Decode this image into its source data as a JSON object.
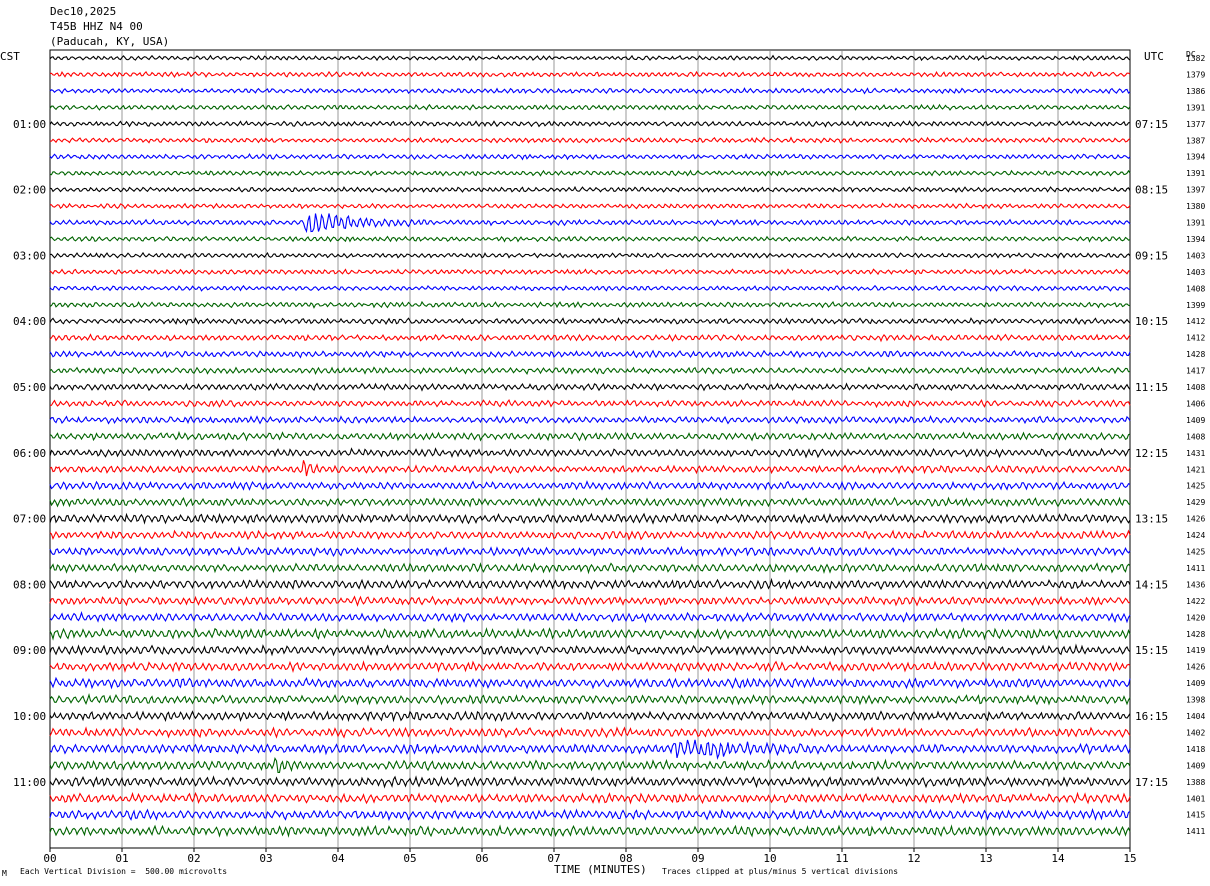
{
  "header": {
    "date": "Dec10,2025",
    "station": "T45B HHZ N4 00",
    "location": "(Paducah, KY, USA)"
  },
  "left_tz": "CST",
  "right_tz": "UTC",
  "dc_label": "DC",
  "footer": {
    "scale": "Each Vertical Division =  500.00 microvolts",
    "xlabel": "TIME (MINUTES)",
    "clip_note": "Traces clipped at plus/minus 5 vertical divisions",
    "corner_mark": "M"
  },
  "colors": {
    "trace_cycle": [
      "#000000",
      "#ff0000",
      "#0000ff",
      "#006400"
    ],
    "grid": "#808080",
    "background": "#ffffff"
  },
  "chart_data": {
    "type": "line",
    "title": "",
    "xlabel": "TIME (MINUTES)",
    "xlim": [
      0,
      15
    ],
    "x_ticks": [
      "00",
      "01",
      "02",
      "03",
      "04",
      "05",
      "06",
      "07",
      "08",
      "09",
      "10",
      "11",
      "12",
      "13",
      "14",
      "15"
    ],
    "trace_count": 48,
    "left_hour_labels": [
      {
        "row": 4,
        "label": "01:00"
      },
      {
        "row": 8,
        "label": "02:00"
      },
      {
        "row": 12,
        "label": "03:00"
      },
      {
        "row": 16,
        "label": "04:00"
      },
      {
        "row": 20,
        "label": "05:00"
      },
      {
        "row": 24,
        "label": "06:00"
      },
      {
        "row": 28,
        "label": "07:00"
      },
      {
        "row": 32,
        "label": "08:00"
      },
      {
        "row": 36,
        "label": "09:00"
      },
      {
        "row": 40,
        "label": "10:00"
      },
      {
        "row": 44,
        "label": "11:00"
      }
    ],
    "right_hour_labels": [
      {
        "row": 4,
        "label": "07:15"
      },
      {
        "row": 8,
        "label": "08:15"
      },
      {
        "row": 12,
        "label": "09:15"
      },
      {
        "row": 16,
        "label": "10:15"
      },
      {
        "row": 20,
        "label": "11:15"
      },
      {
        "row": 24,
        "label": "12:15"
      },
      {
        "row": 28,
        "label": "13:15"
      },
      {
        "row": 32,
        "label": "14:15"
      },
      {
        "row": 36,
        "label": "15:15"
      },
      {
        "row": 40,
        "label": "16:15"
      },
      {
        "row": 44,
        "label": "17:15"
      }
    ],
    "dc_offsets": [
      "1382",
      "1379",
      "1386",
      "1391",
      "1377",
      "1387",
      "1394",
      "1391",
      "1397",
      "1380",
      "1391",
      "1394",
      "1403",
      "1403",
      "1408",
      "1399",
      "1412",
      "1412",
      "1428",
      "1417",
      "1408",
      "1406",
      "1409",
      "1408",
      "1431",
      "1421",
      "1425",
      "1429",
      "1426",
      "1424",
      "1425",
      "1411",
      "1436",
      "1422",
      "1420",
      "1428",
      "1419",
      "1426",
      "1409",
      "1398",
      "1404",
      "1402",
      "1418",
      "1409",
      "1388",
      "1401",
      "1415",
      "1411"
    ],
    "trace_activity": [
      0.55,
      0.6,
      0.6,
      0.6,
      0.65,
      0.6,
      0.6,
      0.6,
      0.6,
      0.6,
      0.65,
      0.6,
      0.6,
      0.6,
      0.6,
      0.65,
      0.7,
      0.75,
      0.75,
      0.75,
      0.8,
      0.8,
      0.85,
      0.9,
      0.95,
      0.9,
      0.95,
      1.0,
      1.1,
      1.0,
      1.0,
      1.05,
      1.1,
      1.0,
      1.05,
      1.2,
      1.1,
      1.1,
      1.15,
      1.1,
      1.1,
      1.1,
      1.15,
      1.15,
      1.15,
      1.15,
      1.15,
      1.2
    ],
    "events": [
      {
        "row": 10,
        "start_min": 3.5,
        "end_min": 5.3,
        "amplitude": 2.8
      },
      {
        "row": 25,
        "start_min": 3.5,
        "end_min": 3.75,
        "amplitude": 3.0
      },
      {
        "row": 42,
        "start_min": 8.6,
        "end_min": 11.0,
        "amplitude": 2.0
      },
      {
        "row": 43,
        "start_min": 3.1,
        "end_min": 3.4,
        "amplitude": 1.6
      }
    ]
  }
}
